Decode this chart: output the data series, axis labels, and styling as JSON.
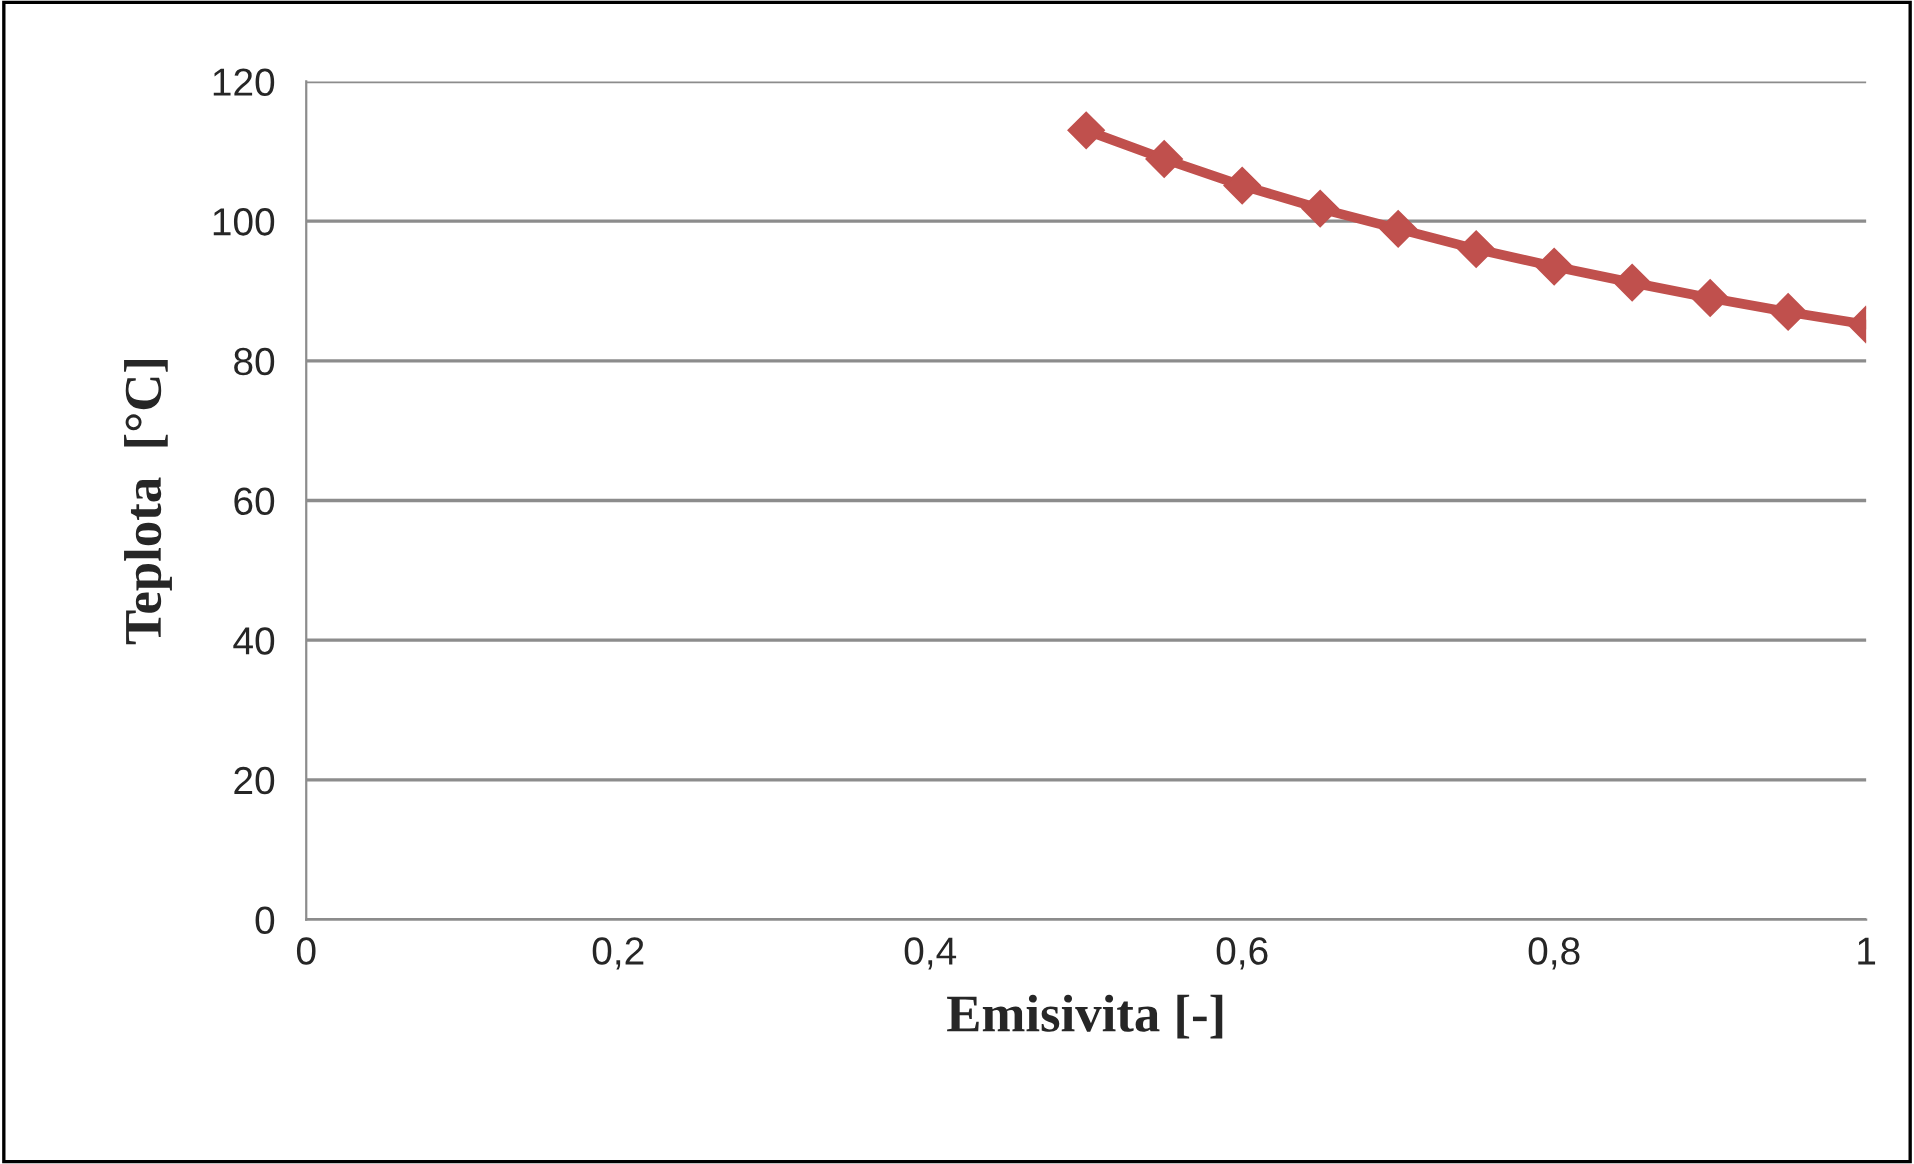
{
  "chart_data": {
    "type": "line",
    "xlabel": "Emisivita [-]",
    "ylabel": "Teplota  [°C]",
    "x": [
      0.5,
      0.55,
      0.6,
      0.65,
      0.7,
      0.75,
      0.8,
      0.85,
      0.9,
      0.95,
      1.0
    ],
    "series": [
      {
        "color": "#c0504d",
        "values": [
          113,
          108.9,
          105.1,
          101.8,
          98.9,
          96,
          93.5,
          91.2,
          89,
          87,
          85.2
        ]
      }
    ],
    "xlim": [
      0,
      1
    ],
    "xticks": [
      {
        "value": 0,
        "label": "0"
      },
      {
        "value": 0.2,
        "label": "0,2"
      },
      {
        "value": 0.4,
        "label": "0,4"
      },
      {
        "value": 0.6,
        "label": "0,6"
      },
      {
        "value": 0.8,
        "label": "0,8"
      },
      {
        "value": 1,
        "label": "1"
      }
    ],
    "ylim": [
      0,
      120
    ],
    "yticks": [
      0,
      20,
      40,
      60,
      80,
      100,
      120
    ],
    "grid": "y",
    "marker": "diamond",
    "line_style": "solid"
  }
}
